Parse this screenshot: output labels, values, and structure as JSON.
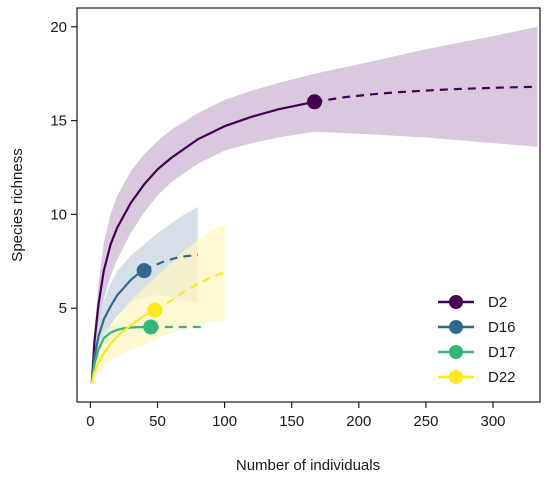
{
  "chart_data": {
    "type": "line",
    "title": "",
    "xlabel": "Number of individuals",
    "ylabel": "Species richness",
    "xlim": [
      -10,
      335
    ],
    "ylim": [
      0,
      21
    ],
    "xticks": [
      0,
      50,
      100,
      150,
      200,
      250,
      300
    ],
    "yticks": [
      5,
      10,
      15,
      20
    ],
    "grid": false,
    "legend_position": "bottom-right",
    "series": [
      {
        "name": "D2",
        "color": "#440154",
        "fill": "#ceb6d3",
        "observed_n": 167,
        "observed_s": 16,
        "interpolated": [
          [
            1,
            1
          ],
          [
            3,
            3.2
          ],
          [
            6,
            5.2
          ],
          [
            10,
            7
          ],
          [
            15,
            8.4
          ],
          [
            20,
            9.3
          ],
          [
            30,
            10.6
          ],
          [
            40,
            11.6
          ],
          [
            50,
            12.4
          ],
          [
            60,
            13
          ],
          [
            80,
            14
          ],
          [
            100,
            14.7
          ],
          [
            120,
            15.2
          ],
          [
            140,
            15.6
          ],
          [
            167,
            16
          ]
        ],
        "extrapolated": [
          [
            167,
            16
          ],
          [
            190,
            16.25
          ],
          [
            210,
            16.4
          ],
          [
            230,
            16.52
          ],
          [
            250,
            16.6
          ],
          [
            270,
            16.67
          ],
          [
            290,
            16.72
          ],
          [
            310,
            16.77
          ],
          [
            333,
            16.8
          ]
        ],
        "ci_upper": [
          [
            1,
            1
          ],
          [
            3,
            3.8
          ],
          [
            6,
            6.3
          ],
          [
            10,
            8.5
          ],
          [
            15,
            10
          ],
          [
            20,
            11
          ],
          [
            30,
            12.3
          ],
          [
            40,
            13.2
          ],
          [
            50,
            13.9
          ],
          [
            60,
            14.5
          ],
          [
            80,
            15.4
          ],
          [
            100,
            16.1
          ],
          [
            120,
            16.6
          ],
          [
            140,
            17
          ],
          [
            167,
            17.5
          ],
          [
            200,
            18
          ],
          [
            250,
            18.8
          ],
          [
            300,
            19.5
          ],
          [
            333,
            20
          ]
        ],
        "ci_lower": [
          [
            333,
            13.6
          ],
          [
            300,
            13.8
          ],
          [
            250,
            14.1
          ],
          [
            200,
            14.3
          ],
          [
            167,
            14.4
          ],
          [
            140,
            14.1
          ],
          [
            120,
            13.8
          ],
          [
            100,
            13.4
          ],
          [
            80,
            12.7
          ],
          [
            60,
            11.7
          ],
          [
            50,
            11
          ],
          [
            40,
            10.1
          ],
          [
            30,
            9
          ],
          [
            20,
            7.6
          ],
          [
            15,
            6.7
          ],
          [
            10,
            5.5
          ],
          [
            6,
            4.2
          ],
          [
            3,
            2.8
          ],
          [
            1,
            1
          ]
        ]
      },
      {
        "name": "D16",
        "color": "#31688e",
        "fill": "#c8d4e0",
        "observed_n": 40,
        "observed_s": 7,
        "interpolated": [
          [
            1,
            1
          ],
          [
            3,
            2.4
          ],
          [
            6,
            3.5
          ],
          [
            10,
            4.4
          ],
          [
            15,
            5.1
          ],
          [
            20,
            5.7
          ],
          [
            25,
            6.1
          ],
          [
            30,
            6.5
          ],
          [
            35,
            6.8
          ],
          [
            40,
            7
          ]
        ],
        "extrapolated": [
          [
            40,
            7
          ],
          [
            45,
            7.2
          ],
          [
            50,
            7.35
          ],
          [
            55,
            7.5
          ],
          [
            60,
            7.6
          ],
          [
            65,
            7.7
          ],
          [
            70,
            7.76
          ],
          [
            75,
            7.8
          ],
          [
            80,
            7.85
          ]
        ],
        "ci_upper": [
          [
            1,
            1
          ],
          [
            3,
            3
          ],
          [
            6,
            4.3
          ],
          [
            10,
            5.4
          ],
          [
            15,
            6.3
          ],
          [
            20,
            7
          ],
          [
            30,
            7.8
          ],
          [
            40,
            8.4
          ],
          [
            50,
            9
          ],
          [
            60,
            9.5
          ],
          [
            70,
            10
          ],
          [
            80,
            10.4
          ]
        ],
        "ci_lower": [
          [
            80,
            5.3
          ],
          [
            70,
            5.4
          ],
          [
            60,
            5.6
          ],
          [
            50,
            5.7
          ],
          [
            40,
            5.6
          ],
          [
            30,
            5.3
          ],
          [
            20,
            4.6
          ],
          [
            15,
            4.1
          ],
          [
            10,
            3.5
          ],
          [
            6,
            2.8
          ],
          [
            3,
            2
          ],
          [
            1,
            1
          ]
        ]
      },
      {
        "name": "D17",
        "color": "#35b779",
        "fill": "#d6ecd8",
        "observed_n": 45,
        "observed_s": 4,
        "interpolated": [
          [
            1,
            1
          ],
          [
            3,
            2
          ],
          [
            6,
            2.8
          ],
          [
            10,
            3.4
          ],
          [
            15,
            3.7
          ],
          [
            20,
            3.85
          ],
          [
            25,
            3.93
          ],
          [
            30,
            3.97
          ],
          [
            35,
            3.99
          ],
          [
            45,
            4
          ]
        ],
        "extrapolated": [
          [
            45,
            4
          ],
          [
            60,
            4
          ],
          [
            75,
            4
          ],
          [
            85,
            4
          ]
        ],
        "ci_upper": [
          [
            1,
            1
          ],
          [
            3,
            2.3
          ],
          [
            6,
            3.2
          ],
          [
            10,
            3.8
          ],
          [
            15,
            4.05
          ],
          [
            20,
            4.1
          ],
          [
            30,
            4.1
          ],
          [
            40,
            4.1
          ],
          [
            45,
            4.1
          ]
        ],
        "ci_lower": [
          [
            45,
            3.9
          ],
          [
            40,
            3.9
          ],
          [
            30,
            3.85
          ],
          [
            20,
            3.6
          ],
          [
            15,
            3.35
          ],
          [
            10,
            3
          ],
          [
            6,
            2.4
          ],
          [
            3,
            1.7
          ],
          [
            1,
            1
          ]
        ]
      },
      {
        "name": "D22",
        "color": "#fde725",
        "fill": "#fdf6c4",
        "observed_n": 48,
        "observed_s": 4.9,
        "interpolated": [
          [
            1,
            1
          ],
          [
            3,
            1.6
          ],
          [
            6,
            2.1
          ],
          [
            10,
            2.6
          ],
          [
            15,
            3.1
          ],
          [
            20,
            3.5
          ],
          [
            30,
            4.1
          ],
          [
            40,
            4.6
          ],
          [
            48,
            4.9
          ]
        ],
        "extrapolated": [
          [
            48,
            4.9
          ],
          [
            60,
            5.4
          ],
          [
            70,
            5.9
          ],
          [
            80,
            6.3
          ],
          [
            90,
            6.65
          ],
          [
            100,
            6.9
          ]
        ],
        "ci_upper": [
          [
            1,
            1
          ],
          [
            3,
            2
          ],
          [
            6,
            2.7
          ],
          [
            10,
            3.4
          ],
          [
            15,
            4
          ],
          [
            20,
            4.5
          ],
          [
            30,
            5.4
          ],
          [
            40,
            6.1
          ],
          [
            48,
            6.6
          ],
          [
            60,
            7.4
          ],
          [
            70,
            8.1
          ],
          [
            80,
            8.6
          ],
          [
            90,
            9.1
          ],
          [
            100,
            9.5
          ]
        ],
        "ci_lower": [
          [
            100,
            4.3
          ],
          [
            90,
            4.3
          ],
          [
            80,
            4.1
          ],
          [
            70,
            3.9
          ],
          [
            60,
            3.7
          ],
          [
            48,
            3.3
          ],
          [
            40,
            3
          ],
          [
            30,
            2.8
          ],
          [
            20,
            2.4
          ],
          [
            15,
            2.2
          ],
          [
            10,
            1.9
          ],
          [
            6,
            1.5
          ],
          [
            3,
            1.2
          ],
          [
            1,
            1
          ]
        ]
      }
    ]
  }
}
